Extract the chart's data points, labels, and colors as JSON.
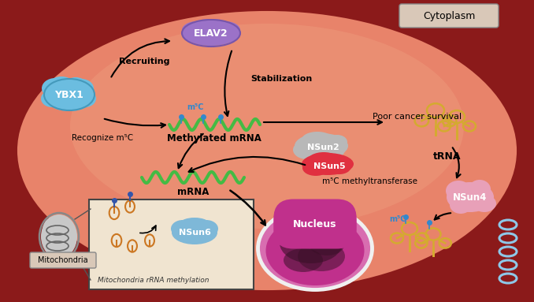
{
  "bg_outer": "#8B1A1A",
  "bg_cell": "#E8836A",
  "cytoplasm_label": "Cytoplasm",
  "cytoplasm_box_color": "#D9C8B8",
  "elav2_color": "#9B72C8",
  "elav2_label": "ELAV2",
  "ybx1_color": "#6BBDE0",
  "ybx1_label": "YBX1",
  "mrna_color": "#44BB44",
  "methylated_mrna_label": "Methylated mRNA",
  "mrna_label": "mRNA",
  "m5c_label": "m⁵C",
  "nsun2_color": "#B0B0B0",
  "nsun2_label": "NSun2",
  "nsun5_color": "#E03040",
  "nsun5_label": "NSun5",
  "methyltransferase_label": "m⁵C methyltransferase",
  "nsun4_color": "#E8A0B8",
  "nsun4_label": "NSun4",
  "trna_label": "tRNA",
  "trna_color": "#D4AA30",
  "poor_cancer_label": "Poor cancer survival",
  "recruiting_label": "Recruiting",
  "stabilization_label": "Stabilization",
  "recognize_label": "Recognize m⁵C",
  "nsun6_color": "#7EB8D8",
  "nsun6_label": "NSun6",
  "mitochondria_label": "Mitochondria",
  "mito_box_label": "Mitochondria rRNA methylation",
  "nucleus_label": "Nucleus",
  "nucleus_color": "#C0308C",
  "arrow_color": "#111111"
}
